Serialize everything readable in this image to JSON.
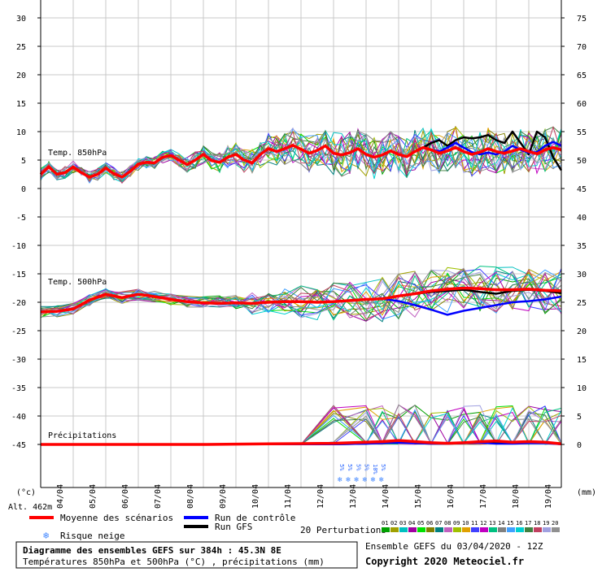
{
  "chart_data": {
    "type": "line",
    "title": "Diagramme des ensembles GEFS sur 384h : 45.3N 8E",
    "subtitle": "Températures 850hPa et 500hPa (°C) , précipitations (mm)",
    "left_axis_unit": "(°c)",
    "right_axis_unit": "(mm)",
    "left_ticks": [
      "30",
      "25",
      "20",
      "15",
      "10",
      "5",
      "0",
      "-5",
      "-10",
      "-15",
      "-20",
      "-25",
      "-30",
      "-35",
      "-40",
      "-45"
    ],
    "right_ticks": [
      "75",
      "70",
      "65",
      "60",
      "55",
      "50",
      "45",
      "40",
      "35",
      "30",
      "25",
      "20",
      "15",
      "10",
      "5",
      "0"
    ],
    "x_labels": [
      "04/04",
      "05/04",
      "06/04",
      "07/04",
      "08/04",
      "09/04",
      "10/04",
      "11/04",
      "12/04",
      "13/04",
      "14/04",
      "15/04",
      "16/04",
      "17/04",
      "18/04",
      "19/04"
    ],
    "ylim": [
      -45,
      30
    ],
    "section_labels": {
      "t850": "Temp. 850hPa",
      "t500": "Temp. 500hPa",
      "precip": "Précipitations"
    },
    "altitude": "Alt. 462m",
    "snow_risk_values": [
      "5%",
      "5%",
      "5%",
      "5%",
      "10%",
      "5%"
    ],
    "snow_risk_label": "Risque neige",
    "legend": {
      "mean": "Moyenne des scénarios",
      "control": "Run de contrôle",
      "gfs": "Run GFS",
      "perturbations": "20 Perturbations",
      "perturbation_ids": [
        "01",
        "02",
        "03",
        "04",
        "05",
        "06",
        "07",
        "08",
        "09",
        "10",
        "11",
        "12",
        "13",
        "14",
        "15",
        "16",
        "17",
        "18",
        "19",
        "20"
      ]
    },
    "series_colors": {
      "mean": "#ff0000",
      "control": "#0000ff",
      "gfs": "#000000",
      "perturbations": [
        "#00a000",
        "#a0a000",
        "#00c0c0",
        "#a000a0",
        "#00e000",
        "#808000",
        "#008080",
        "#c060c0",
        "#a0c000",
        "#e0a000",
        "#4040ff",
        "#c000c0",
        "#00c080",
        "#808080",
        "#40a0ff",
        "#00d0d0",
        "#408040",
        "#c04060",
        "#a0a0e0",
        "#909090"
      ]
    },
    "t850": {
      "x_days": [
        0,
        0.25,
        0.5,
        0.75,
        1,
        1.25,
        1.5,
        1.75,
        2,
        2.25,
        2.5,
        2.75,
        3,
        3.25,
        3.5,
        3.75,
        4,
        4.25,
        4.5,
        4.75,
        5,
        5.25,
        5.5,
        5.75,
        6,
        6.25,
        6.5,
        6.75,
        7,
        7.25,
        7.5,
        7.75,
        8,
        8.25,
        8.5,
        8.75,
        9,
        9.25,
        9.5,
        9.75,
        10,
        10.25,
        10.5,
        10.75,
        11,
        11.25,
        11.5,
        11.75,
        12,
        12.25,
        12.5,
        12.75,
        13,
        13.25,
        13.5,
        13.75,
        14,
        14.25,
        14.5,
        14.75,
        15,
        15.25,
        15.5,
        15.75,
        16
      ],
      "mean": [
        2.5,
        3.8,
        2.5,
        2.8,
        3.8,
        2.8,
        2,
        2.5,
        3.6,
        2.6,
        2,
        3,
        4.3,
        4.6,
        4.5,
        5.5,
        5.8,
        5,
        4.2,
        5,
        6,
        4.9,
        4.6,
        5.5,
        6,
        5,
        4.5,
        6,
        7,
        6.5,
        7,
        7.6,
        6.9,
        6.2,
        6.7,
        7.5,
        6.2,
        5.9,
        6.3,
        7,
        6,
        5.5,
        5.9,
        6.6,
        6,
        5.6,
        6.5,
        7.2,
        6.8,
        6.2,
        6.6,
        7.2,
        6.5,
        6,
        6.4,
        7,
        6.5,
        6.2,
        6.6,
        7,
        6.5,
        6.1,
        6.8,
        7.2,
        6.8
      ],
      "control": [
        2.5,
        3.8,
        2.5,
        2.8,
        3.8,
        2.8,
        2,
        2.5,
        3.6,
        2.6,
        2,
        3,
        4.3,
        4.6,
        4.5,
        5.5,
        5.8,
        5,
        4.2,
        5,
        6,
        4.9,
        4.6,
        5.5,
        6,
        5,
        4.5,
        6,
        7,
        6.5,
        7,
        7.6,
        6.9,
        6.2,
        6.7,
        7.5,
        6.2,
        5.9,
        6.3,
        7,
        6,
        5.5,
        5.9,
        6.6,
        6,
        5.6,
        6.5,
        7.2,
        6.8,
        6.5,
        7.2,
        8,
        7.2,
        6.4,
        6,
        6.3,
        6,
        6.5,
        7.5,
        6.8,
        6.3,
        6.4,
        7.5,
        8.2,
        7.5
      ],
      "gfs": [
        2.5,
        3.8,
        2.5,
        2.8,
        3.8,
        2.8,
        2,
        2.5,
        3.6,
        2.6,
        2,
        3,
        4.3,
        4.6,
        4.5,
        5.5,
        5.8,
        5,
        4.2,
        5,
        6,
        4.9,
        4.6,
        5.5,
        6,
        5,
        4.5,
        6,
        7,
        6.5,
        7,
        7.6,
        6.9,
        6.2,
        6.7,
        7.5,
        6.2,
        5.9,
        6.3,
        7,
        6,
        5.5,
        5.9,
        6.6,
        6,
        5.6,
        6.5,
        7.2,
        8,
        8.5,
        7.5,
        8.5,
        9,
        8.8,
        9,
        9.4,
        8.5,
        8,
        10,
        8,
        6,
        10,
        9,
        5.5,
        3.2
      ]
    },
    "t500": {
      "x_days": [
        0,
        0.5,
        1,
        1.5,
        2,
        2.5,
        3,
        3.5,
        4,
        4.5,
        5,
        5.5,
        6,
        6.5,
        7,
        7.5,
        8,
        8.5,
        9,
        9.5,
        10,
        10.5,
        11,
        11.5,
        12,
        12.5,
        13,
        13.5,
        14,
        14.5,
        15,
        15.5,
        16
      ],
      "mean": [
        -21.7,
        -21.6,
        -21.2,
        -19.6,
        -18.6,
        -19.2,
        -18.6,
        -19,
        -19.5,
        -19.9,
        -20.1,
        -20.2,
        -20.1,
        -20.2,
        -20,
        -19.9,
        -19.9,
        -20,
        -19.9,
        -19.7,
        -19.5,
        -19.4,
        -18.9,
        -18.5,
        -18,
        -17.7,
        -17.5,
        -17.6,
        -17.8,
        -17.8,
        -17.7,
        -17.9,
        -18
      ],
      "control": [
        -21.7,
        -21.6,
        -21.2,
        -19.6,
        -18.6,
        -19.2,
        -18.6,
        -19,
        -19.5,
        -19.9,
        -20.1,
        -20.2,
        -20.1,
        -20.2,
        -20,
        -19.9,
        -19.9,
        -20,
        -19.9,
        -19.7,
        -19.5,
        -19.4,
        -19.8,
        -20.5,
        -21.3,
        -22.2,
        -21.5,
        -21,
        -20.5,
        -20,
        -19.8,
        -19.5,
        -19
      ],
      "gfs": [
        -21.7,
        -21.6,
        -21.2,
        -19.6,
        -18.6,
        -19.2,
        -18.6,
        -19,
        -19.5,
        -19.9,
        -20.1,
        -20.2,
        -20.1,
        -20.2,
        -20,
        -19.9,
        -19.9,
        -20,
        -19.9,
        -19.7,
        -19.5,
        -19.4,
        -18.9,
        -18.5,
        -18.2,
        -18,
        -17.8,
        -18.2,
        -18.5,
        -18,
        -17.8,
        -18,
        -18.4
      ]
    },
    "precip": {
      "x_days": [
        0,
        1,
        2,
        3,
        4,
        5,
        6,
        7,
        8,
        9,
        10,
        10.5,
        11,
        11.5,
        12,
        12.5,
        13,
        13.5,
        14,
        14.5,
        15,
        15.5,
        16
      ],
      "mean": [
        0,
        0,
        0,
        0,
        0,
        0,
        0.05,
        0.1,
        0.15,
        0.2,
        0.4,
        0.5,
        0.7,
        0.5,
        0.3,
        0.2,
        0.3,
        0.5,
        0.6,
        0.4,
        0.5,
        0.4,
        0.1
      ],
      "control": [
        0,
        0,
        0,
        0,
        0,
        0,
        0,
        0,
        0,
        0,
        0.1,
        0.2,
        0.3,
        0.2,
        0.1,
        0.1,
        0.2,
        0.3,
        0.1,
        0.1,
        0.2,
        0.2,
        0
      ],
      "gfs": [
        0,
        0,
        0,
        0,
        0,
        0,
        0,
        0,
        0,
        0,
        0.1,
        0.3,
        0.4,
        0.2,
        0.1,
        0.1,
        0.2,
        0.3,
        0.2,
        0.2,
        0.3,
        0.4,
        0
      ]
    }
  },
  "footer": {
    "title": "Diagramme des ensembles GEFS sur 384h : 45.3N 8E",
    "subtitle": "Températures 850hPa et 500hPa (°C) , précipitations (mm)",
    "run_info": "Ensemble GEFS du 03/04/2020 - 12Z",
    "copyright": "Copyright 2020 Meteociel.fr"
  }
}
